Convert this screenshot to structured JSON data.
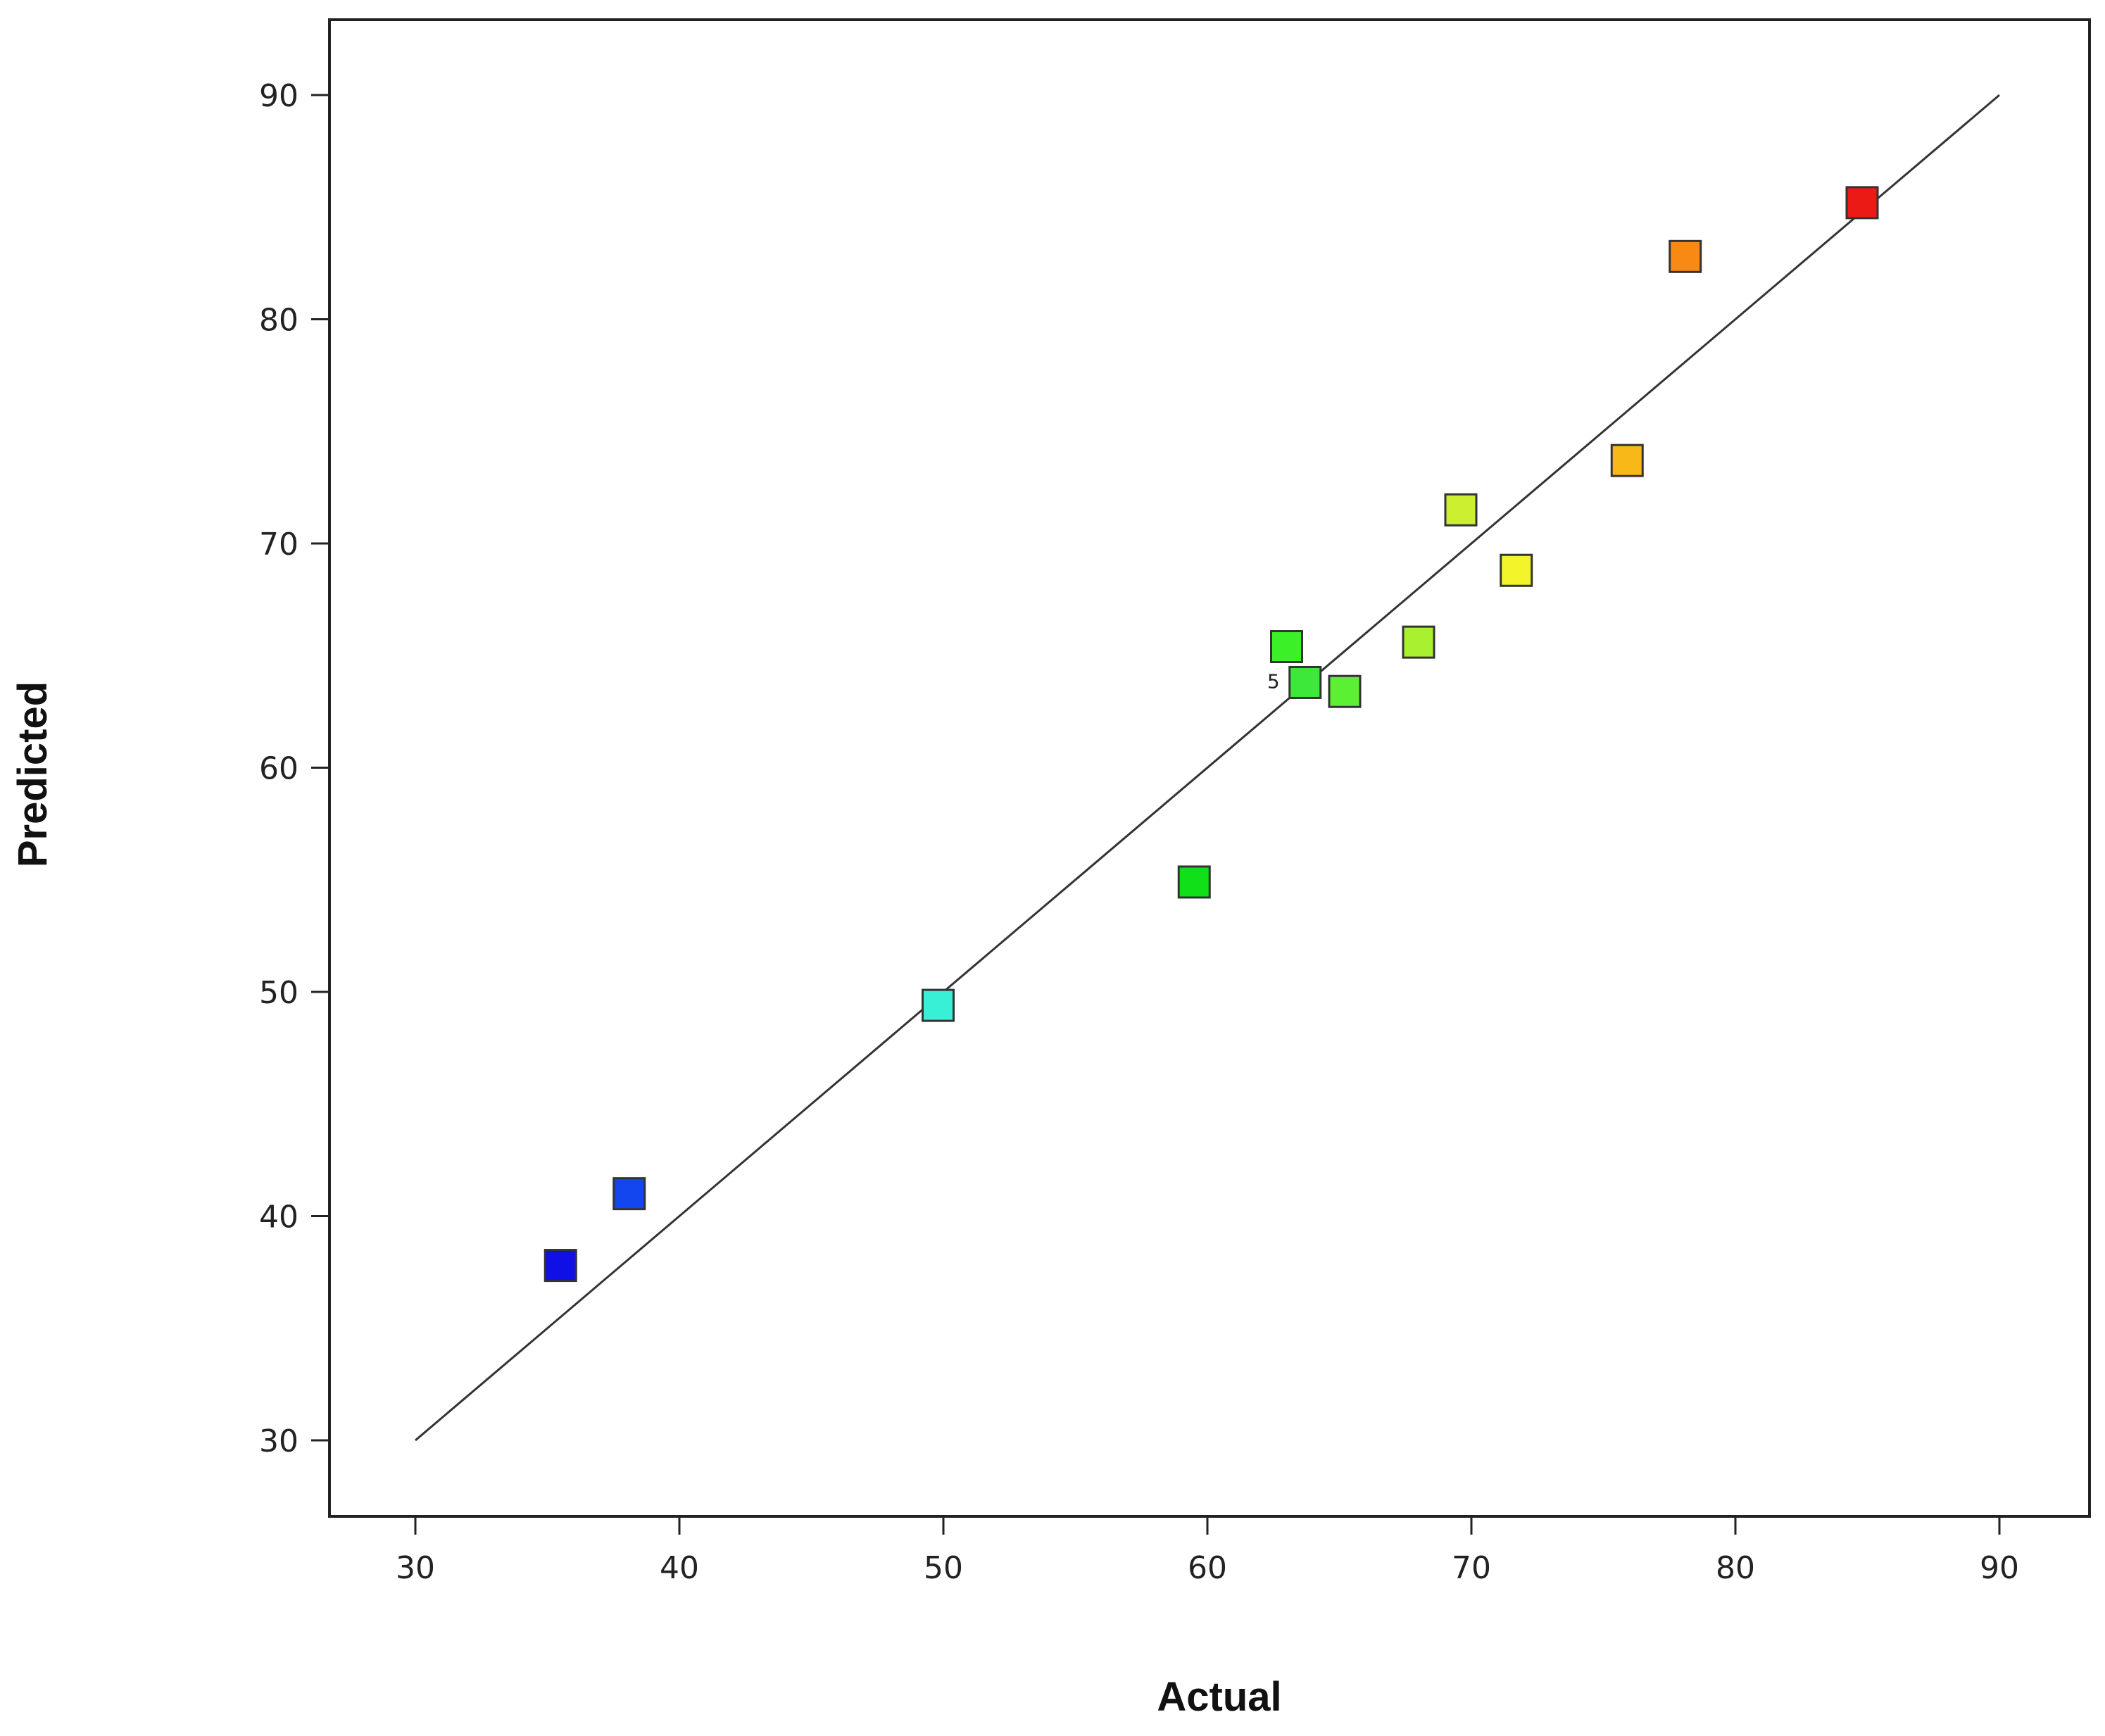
{
  "chart_data": {
    "type": "scatter",
    "title": "",
    "xlabel": "Actual",
    "ylabel": "Predicted",
    "xlim": [
      30,
      90
    ],
    "ylim": [
      30,
      90
    ],
    "xticks": [
      30,
      40,
      50,
      60,
      70,
      80,
      90
    ],
    "yticks": [
      30,
      40,
      50,
      60,
      70,
      80,
      90
    ],
    "grid": false,
    "legend": "none",
    "reference_line": {
      "from": [
        30,
        30
      ],
      "to": [
        90,
        90
      ],
      "color": "#333333"
    },
    "points": [
      {
        "x": 35.5,
        "y": 37.8,
        "color": "#1010e6"
      },
      {
        "x": 38.1,
        "y": 41.0,
        "color": "#1446f0"
      },
      {
        "x": 49.8,
        "y": 49.4,
        "color": "#38f0d6"
      },
      {
        "x": 59.5,
        "y": 54.9,
        "color": "#10e018"
      },
      {
        "x": 63.0,
        "y": 65.4,
        "color": "#3cf028"
      },
      {
        "x": 63.7,
        "y": 63.8,
        "color": "#3ee83a",
        "label": "5"
      },
      {
        "x": 65.2,
        "y": 63.4,
        "color": "#5cf032"
      },
      {
        "x": 68.0,
        "y": 65.6,
        "color": "#a8f030"
      },
      {
        "x": 69.6,
        "y": 71.5,
        "color": "#ccf030"
      },
      {
        "x": 71.7,
        "y": 68.8,
        "color": "#f4f42a"
      },
      {
        "x": 75.9,
        "y": 73.7,
        "color": "#f8b818"
      },
      {
        "x": 78.1,
        "y": 82.8,
        "color": "#f88a14"
      },
      {
        "x": 84.8,
        "y": 85.2,
        "color": "#ec1a14"
      }
    ]
  }
}
